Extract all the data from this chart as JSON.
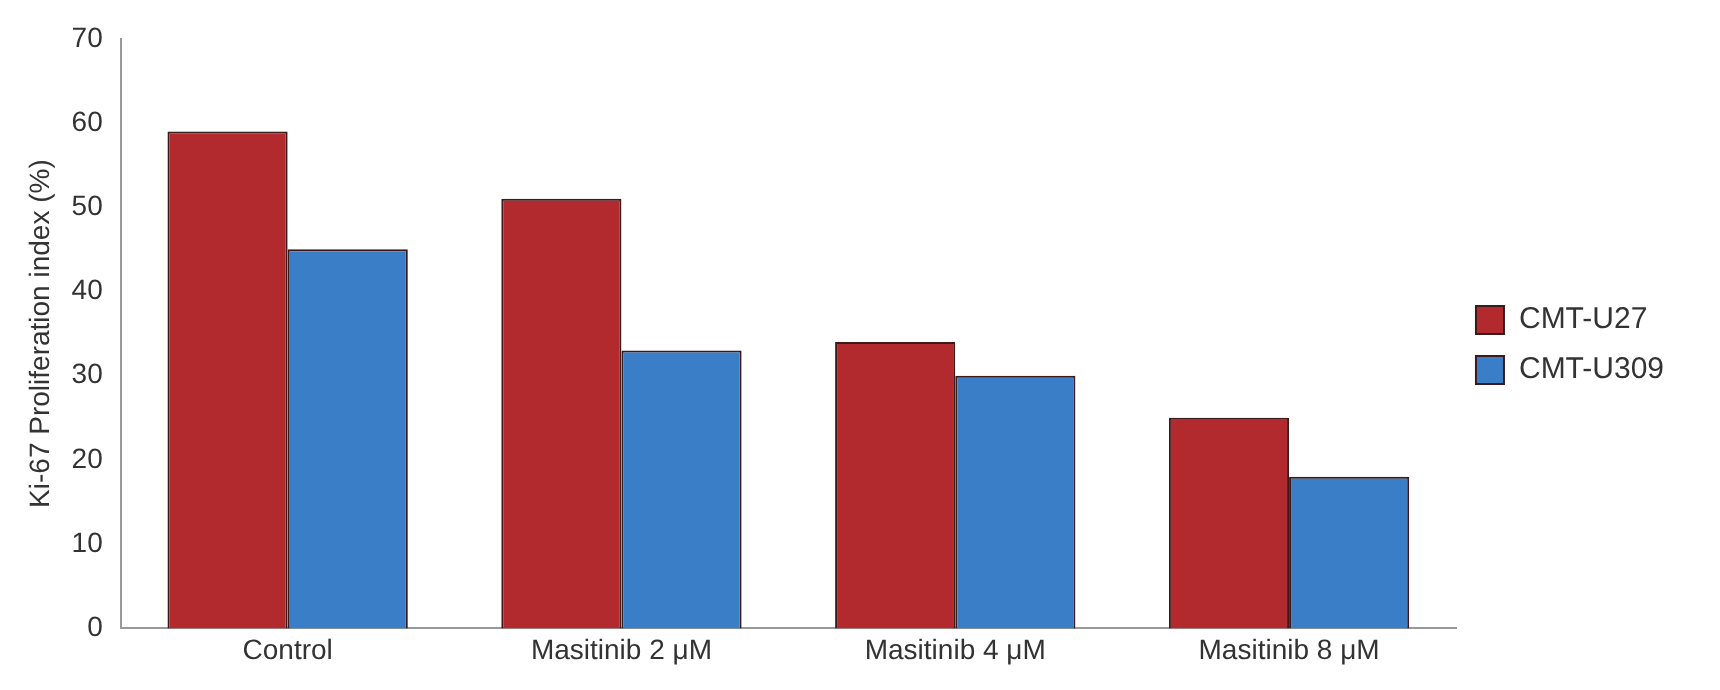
{
  "chart_data": {
    "type": "bar",
    "ylabel": "Ki-67 Proliferation index (%)",
    "categories": [
      "Control",
      "Masitinib 2 μM",
      "Masitinib 4 μM",
      "Masitinib 8 μM"
    ],
    "series": [
      {
        "name": "CMT-U27",
        "color": "#b22a2e",
        "values": [
          59,
          51,
          34,
          25
        ]
      },
      {
        "name": "CMT-U309",
        "color": "#3b7ec8",
        "values": [
          45,
          33,
          30,
          18
        ]
      }
    ],
    "ylim": [
      0,
      70
    ],
    "yticks": [
      0,
      10,
      20,
      30,
      40,
      50,
      60,
      70
    ],
    "grid": false,
    "legend": "right"
  }
}
